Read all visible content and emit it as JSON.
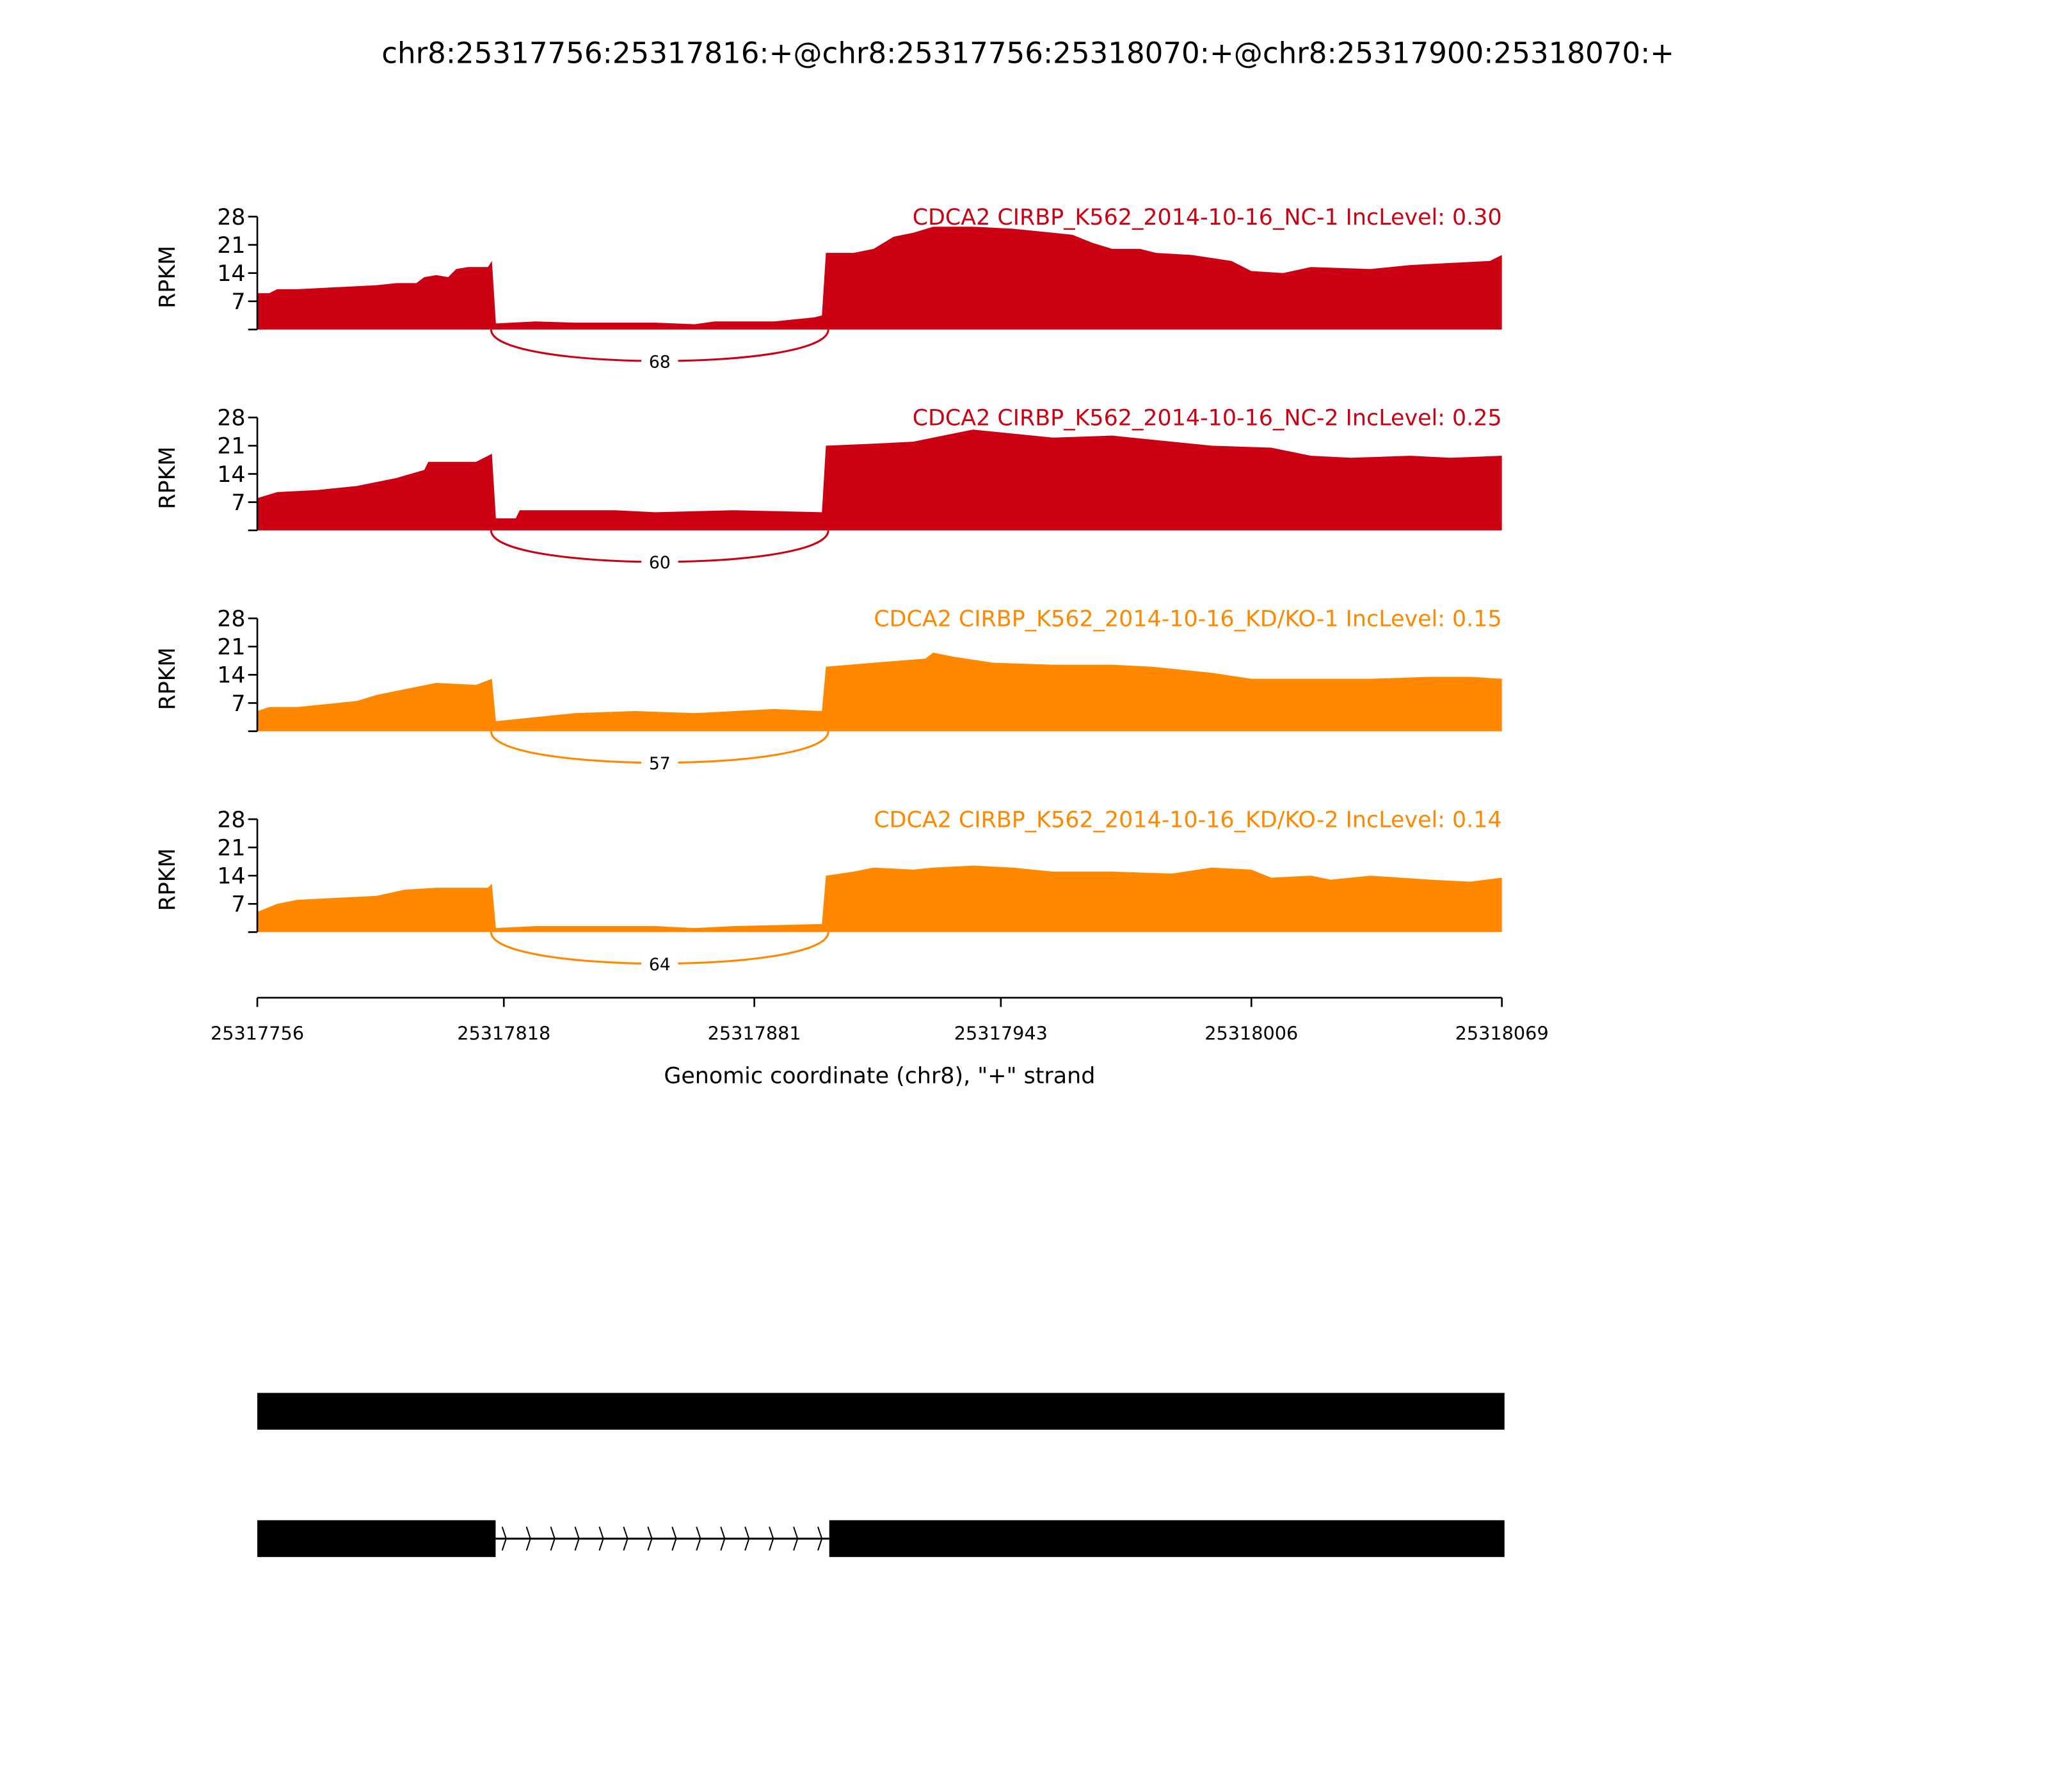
{
  "chart_data": {
    "type": "area",
    "title": "chr8:25317756:25317816:+@chr8:25317756:25318070:+@chr8:25317900:25318070:+",
    "xlabel": "Genomic coordinate (chr8), \"+\" strand",
    "ylabel": "RPKM",
    "xlim": [
      25317756,
      25318069
    ],
    "x_ticks": [
      "25317756",
      "25317818",
      "25317881",
      "25317943",
      "25318006",
      "25318069"
    ],
    "ylim": [
      0,
      28
    ],
    "y_ticks": [
      "7",
      "14",
      "21",
      "28"
    ],
    "colors": {
      "NC": "#cc0013",
      "KD": "#ff8800",
      "gene": "#000000"
    },
    "tracks": [
      {
        "label": "CDCA2 CIRBP_K562_2014-10-16_NC-1 IncLevel: 0.30",
        "group": "NC",
        "junction_count": "68",
        "coverage": [
          [
            0,
            9
          ],
          [
            3,
            9
          ],
          [
            5,
            10
          ],
          [
            10,
            10
          ],
          [
            20,
            10.5
          ],
          [
            30,
            11
          ],
          [
            35,
            11.5
          ],
          [
            40,
            11.5
          ],
          [
            42,
            13
          ],
          [
            45,
            13.5
          ],
          [
            48,
            13
          ],
          [
            50,
            15
          ],
          [
            53,
            15.5
          ],
          [
            58,
            15.5
          ],
          [
            59,
            17
          ],
          [
            60,
            1.5
          ],
          [
            70,
            2
          ],
          [
            80,
            1.7
          ],
          [
            100,
            1.7
          ],
          [
            110,
            1.3
          ],
          [
            115,
            2
          ],
          [
            130,
            2
          ],
          [
            140,
            3
          ],
          [
            142,
            3.5
          ],
          [
            143,
            19
          ],
          [
            150,
            19
          ],
          [
            155,
            20
          ],
          [
            160,
            23
          ],
          [
            165,
            24
          ],
          [
            170,
            25.5
          ],
          [
            180,
            25.5
          ],
          [
            190,
            25
          ],
          [
            200,
            24
          ],
          [
            205,
            23.5
          ],
          [
            210,
            21.5
          ],
          [
            215,
            20
          ],
          [
            222,
            20
          ],
          [
            226,
            19
          ],
          [
            235,
            18.5
          ],
          [
            245,
            17
          ],
          [
            250,
            14.5
          ],
          [
            258,
            14
          ],
          [
            265,
            15.5
          ],
          [
            280,
            15
          ],
          [
            290,
            16
          ],
          [
            300,
            16.5
          ],
          [
            310,
            17
          ],
          [
            313,
            18.5
          ]
        ]
      },
      {
        "label": "CDCA2 CIRBP_K562_2014-10-16_NC-2 IncLevel: 0.25",
        "group": "NC",
        "junction_count": "60",
        "coverage": [
          [
            0,
            8
          ],
          [
            5,
            9.5
          ],
          [
            15,
            10
          ],
          [
            25,
            11
          ],
          [
            35,
            13
          ],
          [
            42,
            15
          ],
          [
            43,
            17
          ],
          [
            55,
            17
          ],
          [
            59,
            19
          ],
          [
            60,
            3
          ],
          [
            65,
            3
          ],
          [
            66,
            5
          ],
          [
            90,
            5
          ],
          [
            100,
            4.5
          ],
          [
            120,
            5
          ],
          [
            142,
            4.5
          ],
          [
            143,
            21
          ],
          [
            155,
            21.5
          ],
          [
            165,
            22
          ],
          [
            170,
            23
          ],
          [
            180,
            25
          ],
          [
            190,
            24
          ],
          [
            200,
            23
          ],
          [
            215,
            23.5
          ],
          [
            230,
            22
          ],
          [
            240,
            21
          ],
          [
            255,
            20.5
          ],
          [
            265,
            18.5
          ],
          [
            275,
            18
          ],
          [
            290,
            18.5
          ],
          [
            300,
            18
          ],
          [
            313,
            18.5
          ]
        ]
      },
      {
        "label": "CDCA2 CIRBP_K562_2014-10-16_KD/KO-1 IncLevel: 0.15",
        "group": "KD",
        "junction_count": "57",
        "coverage": [
          [
            0,
            5
          ],
          [
            3,
            6
          ],
          [
            10,
            6
          ],
          [
            20,
            7
          ],
          [
            25,
            7.5
          ],
          [
            30,
            9
          ],
          [
            35,
            10
          ],
          [
            40,
            11
          ],
          [
            45,
            12
          ],
          [
            55,
            11.5
          ],
          [
            59,
            13
          ],
          [
            60,
            2.5
          ],
          [
            70,
            3.5
          ],
          [
            80,
            4.5
          ],
          [
            95,
            5
          ],
          [
            110,
            4.5
          ],
          [
            120,
            5
          ],
          [
            130,
            5.5
          ],
          [
            142,
            5
          ],
          [
            143,
            16
          ],
          [
            155,
            17
          ],
          [
            168,
            18
          ],
          [
            170,
            19.5
          ],
          [
            175,
            18.5
          ],
          [
            185,
            17
          ],
          [
            200,
            16.5
          ],
          [
            215,
            16.5
          ],
          [
            225,
            16
          ],
          [
            240,
            14.5
          ],
          [
            250,
            13
          ],
          [
            260,
            13
          ],
          [
            270,
            13
          ],
          [
            280,
            13
          ],
          [
            295,
            13.5
          ],
          [
            305,
            13.5
          ],
          [
            313,
            13
          ]
        ]
      },
      {
        "label": "CDCA2 CIRBP_K562_2014-10-16_KD/KO-2 IncLevel: 0.14",
        "group": "KD",
        "junction_count": "64",
        "coverage": [
          [
            0,
            5
          ],
          [
            5,
            7
          ],
          [
            10,
            8
          ],
          [
            20,
            8.5
          ],
          [
            30,
            9
          ],
          [
            37,
            10.5
          ],
          [
            45,
            11
          ],
          [
            58,
            11
          ],
          [
            59,
            12
          ],
          [
            60,
            1
          ],
          [
            70,
            1.5
          ],
          [
            90,
            1.5
          ],
          [
            100,
            1.5
          ],
          [
            110,
            1
          ],
          [
            120,
            1.5
          ],
          [
            142,
            2
          ],
          [
            143,
            14
          ],
          [
            150,
            15
          ],
          [
            155,
            16
          ],
          [
            165,
            15.5
          ],
          [
            170,
            16
          ],
          [
            180,
            16.5
          ],
          [
            190,
            16
          ],
          [
            200,
            15
          ],
          [
            215,
            15
          ],
          [
            230,
            14.5
          ],
          [
            240,
            16
          ],
          [
            250,
            15.5
          ],
          [
            255,
            13.5
          ],
          [
            265,
            14
          ],
          [
            270,
            13
          ],
          [
            280,
            14
          ],
          [
            295,
            13
          ],
          [
            305,
            12.5
          ],
          [
            313,
            13.5
          ]
        ]
      }
    ],
    "junction": [
      58.8,
      143.6
    ],
    "gene_models": [
      {
        "exons": [
          [
            0,
            314
          ]
        ]
      },
      {
        "exons": [
          [
            0,
            60
          ],
          [
            144,
            314
          ]
        ]
      }
    ]
  }
}
